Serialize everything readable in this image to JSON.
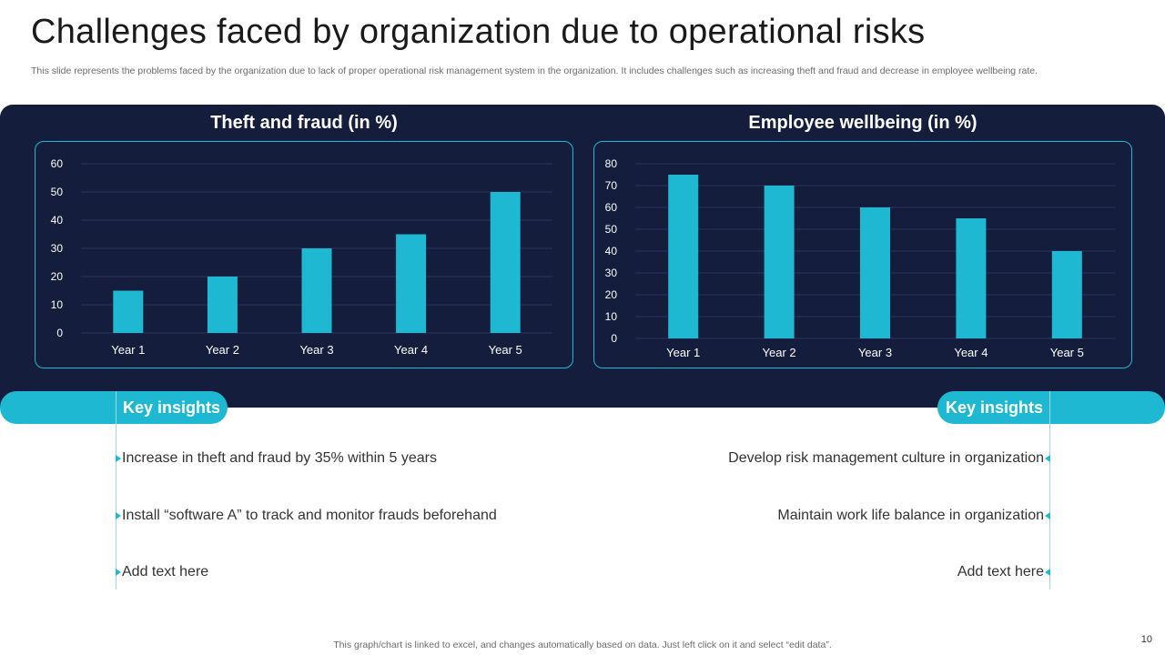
{
  "slide": {
    "title": "Challenges faced by organization due to operational risks",
    "subtitle": "This slide represents the problems faced by the organization due to lack of proper operational risk management system in the organization. It includes challenges such as increasing theft and fraud and decrease in employee wellbeing rate.",
    "footer": "This graph/chart is linked to excel, and changes automatically based on data. Just left click on it and select “edit data”.",
    "page_number": "10"
  },
  "colors": {
    "panel": "#141d3c",
    "bar": "#1fb8d2",
    "accent": "#1fb8d2"
  },
  "chart_data": [
    {
      "type": "bar",
      "title": "Theft and fraud (in %)",
      "categories": [
        "Year 1",
        "Year 2",
        "Year 3",
        "Year 4",
        "Year 5"
      ],
      "values": [
        15,
        20,
        30,
        35,
        50
      ],
      "ylim": [
        0,
        60
      ],
      "yticks": [
        0,
        10,
        20,
        30,
        40,
        50,
        60
      ],
      "grid": true,
      "xlabel": "",
      "ylabel": ""
    },
    {
      "type": "bar",
      "title": "Employee  wellbeing (in %)",
      "categories": [
        "Year 1",
        "Year 2",
        "Year 3",
        "Year 4",
        "Year 5"
      ],
      "values": [
        75,
        70,
        60,
        55,
        40
      ],
      "ylim": [
        0,
        80
      ],
      "yticks": [
        0,
        10,
        20,
        30,
        40,
        50,
        60,
        70,
        80
      ],
      "grid": true,
      "xlabel": "",
      "ylabel": ""
    }
  ],
  "insights": {
    "left": {
      "label": "Key insights",
      "items": [
        "Increase  in theft  and fraud by 35% within 5 years",
        "Install  “software A” to track and monitor frauds beforehand",
        "Add text here"
      ]
    },
    "right": {
      "label": "Key insights",
      "items": [
        "Develop risk management  culture  in organization",
        "Maintain work life balance in organization",
        "Add text here"
      ]
    }
  }
}
